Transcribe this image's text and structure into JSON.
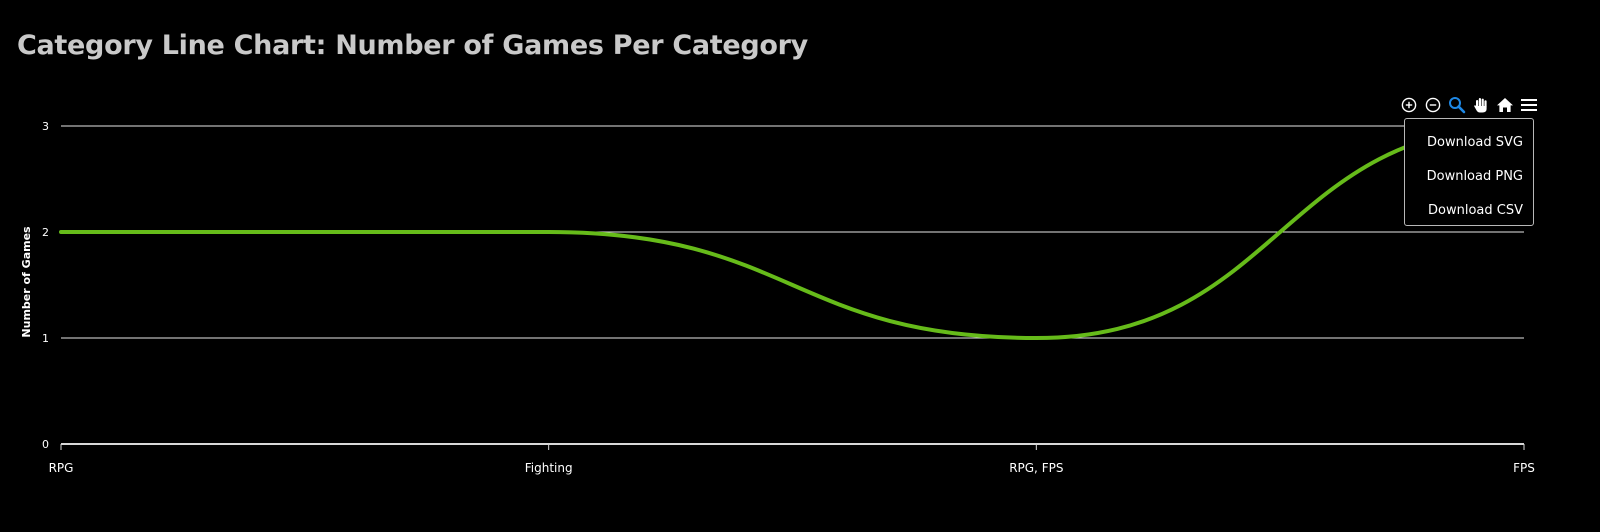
{
  "page": {
    "title": "Category Line Chart: Number of Games Per Category"
  },
  "toolbar": {
    "icons": [
      "zoom-in-icon",
      "zoom-out-icon",
      "zoom-selection-icon",
      "pan-hand-icon",
      "home-reset-icon",
      "menu-icon"
    ],
    "active_color": "#1e88e5",
    "icon_color": "#ffffff"
  },
  "menu": {
    "items": [
      "Download SVG",
      "Download PNG",
      "Download CSV"
    ]
  },
  "chart_data": {
    "type": "line",
    "curve": "smooth",
    "title": "Category Line Chart: Number of Games Per Category",
    "xlabel": "",
    "ylabel": "Number of Games",
    "categories": [
      "RPG",
      "Fighting",
      "RPG, FPS",
      "FPS"
    ],
    "series": [
      {
        "values": [
          2,
          2,
          1,
          3
        ],
        "color": "#66bb1a"
      }
    ],
    "ylim": [
      0,
      3
    ],
    "yticks": [
      0,
      1,
      2,
      3
    ],
    "grid": true,
    "gridline_color": "#e6e6e6",
    "axis_color": "#d9d9d9",
    "legend": "none"
  }
}
